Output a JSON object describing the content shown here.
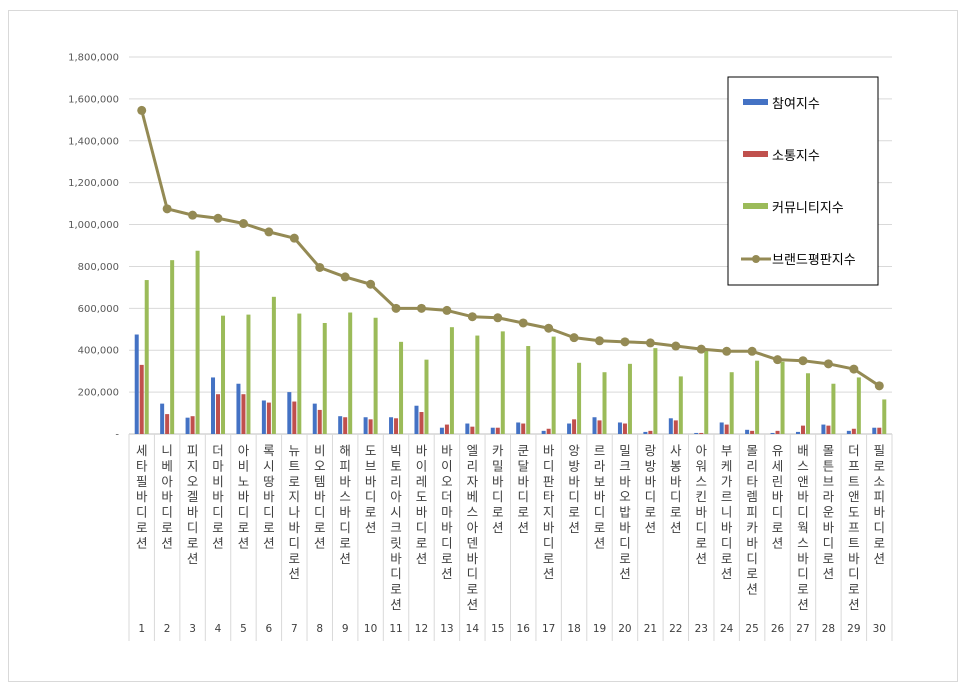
{
  "chart_data": {
    "type": "bar",
    "categories": [
      "세타필 바디로션",
      "니베아 바디로션",
      "피지오겔 바디로션",
      "더마비 바디로션",
      "아비노 바디로션",
      "록시땅 바디로션",
      "뉴트로지나 바디로션",
      "비오템 바디로션",
      "해피바스 바디로션",
      "도브 바디로션",
      "빅토리아시크릿 바디로션",
      "바이레도 바디로션",
      "바이오더마 바디로션",
      "엘리자베스아덴 바디로션",
      "카밀 바디로션",
      "쿤달 바디로션",
      "바디판타지 바디로션",
      "앙방 바디로션",
      "르라보 바디로션",
      "밀크바오밥 바디로션",
      "랑방 바디로션",
      "사봉 바디로션",
      "아워스킨 바디로션",
      "부케가르니 바디로션",
      "몰리타렘피카 바디로션",
      "유세린 바디로션",
      "배스앤바디웍스 바디로션",
      "몰튼브라운 바디로션",
      "더프트앤도프트 바디로션",
      "필로소피 바디로션"
    ],
    "category_labels": [
      [
        "세",
        "타",
        "필",
        "바",
        "디",
        "로",
        "션"
      ],
      [
        "니",
        "베",
        "아",
        "바",
        "디",
        "로",
        "션"
      ],
      [
        "피",
        "지",
        "오",
        "겔",
        "바",
        "디",
        "로",
        "션"
      ],
      [
        "더",
        "마",
        "비",
        "바",
        "디",
        "로",
        "션"
      ],
      [
        "아",
        "비",
        "노",
        "바",
        "디",
        "로",
        "션"
      ],
      [
        "록",
        "시",
        "땅",
        "바",
        "디",
        "로",
        "션"
      ],
      [
        "뉴",
        "트",
        "로",
        "지",
        "나",
        "바",
        "디",
        "로",
        "션"
      ],
      [
        "비",
        "오",
        "템",
        "바",
        "디",
        "로",
        "션"
      ],
      [
        "해",
        "피",
        "바",
        "스",
        "바",
        "디",
        "로",
        "션"
      ],
      [
        "도",
        "브",
        "바",
        "디",
        "로",
        "션"
      ],
      [
        "빅",
        "토",
        "리",
        "아",
        "시",
        "크",
        "릿",
        "바",
        "디",
        "로",
        "션"
      ],
      [
        "바",
        "이",
        "레",
        "도",
        "바",
        "디",
        "로",
        "션"
      ],
      [
        "바",
        "이",
        "오",
        "더",
        "마",
        "바",
        "디",
        "로",
        "션"
      ],
      [
        "엘",
        "리",
        "자",
        "베",
        "스",
        "아",
        "덴",
        "바",
        "디",
        "로",
        "션"
      ],
      [
        "카",
        "밀",
        "바",
        "디",
        "로",
        "션"
      ],
      [
        "쿤",
        "달",
        "바",
        "디",
        "로",
        "션"
      ],
      [
        "바",
        "디",
        "판",
        "타",
        "지",
        "바",
        "디",
        "로",
        "션"
      ],
      [
        "앙",
        "방",
        "바",
        "디",
        "로",
        "션"
      ],
      [
        "르",
        "라",
        "보",
        "바",
        "디",
        "로",
        "션"
      ],
      [
        "밀",
        "크",
        "바",
        "오",
        "밥",
        "바",
        "디",
        "로",
        "션"
      ],
      [
        "랑",
        "방",
        "바",
        "디",
        "로",
        "션"
      ],
      [
        "사",
        "봉",
        "바",
        "디",
        "로",
        "션"
      ],
      [
        "아",
        "워",
        "스",
        "킨",
        "바",
        "디",
        "로",
        "션"
      ],
      [
        "부",
        "케",
        "가",
        "르",
        "니",
        "바",
        "디",
        "로",
        "션"
      ],
      [
        "몰",
        "리",
        "타",
        "렘",
        "피",
        "카",
        "바",
        "디",
        "로",
        "션"
      ],
      [
        "유",
        "세",
        "린",
        "바",
        "디",
        "로",
        "션"
      ],
      [
        "배",
        "스",
        "앤",
        "바",
        "디",
        "웍",
        "스",
        "바",
        "디",
        "로",
        "션"
      ],
      [
        "몰",
        "튼",
        "브",
        "라",
        "운",
        "바",
        "디",
        "로",
        "션"
      ],
      [
        "더",
        "프",
        "트",
        "앤",
        "도",
        "프",
        "트",
        "바",
        "디",
        "로",
        "션"
      ],
      [
        "필",
        "로",
        "소",
        "피",
        "바",
        "디",
        "로",
        "션"
      ]
    ],
    "ranks": [
      "1",
      "2",
      "3",
      "4",
      "5",
      "6",
      "7",
      "8",
      "9",
      "10",
      "11",
      "12",
      "13",
      "14",
      "15",
      "16",
      "17",
      "18",
      "19",
      "20",
      "21",
      "22",
      "23",
      "24",
      "25",
      "26",
      "27",
      "28",
      "29",
      "30"
    ],
    "series": [
      {
        "name": "참여지수",
        "type": "bar",
        "color": "#4472c4",
        "values": [
          475000,
          145000,
          78000,
          270000,
          240000,
          160000,
          200000,
          145000,
          85000,
          80000,
          80000,
          135000,
          30000,
          50000,
          30000,
          55000,
          15000,
          50000,
          80000,
          55000,
          10000,
          75000,
          5000,
          55000,
          20000,
          5000,
          10000,
          45000,
          15000,
          30000
        ]
      },
      {
        "name": "소통지수",
        "type": "bar",
        "color": "#c0504d",
        "values": [
          330000,
          95000,
          85000,
          190000,
          190000,
          150000,
          155000,
          115000,
          80000,
          70000,
          75000,
          105000,
          45000,
          35000,
          30000,
          50000,
          25000,
          70000,
          65000,
          50000,
          15000,
          65000,
          5000,
          45000,
          15000,
          15000,
          40000,
          40000,
          25000,
          30000
        ]
      },
      {
        "name": "커뮤니티지수",
        "type": "bar",
        "color": "#9bbb59",
        "values": [
          735000,
          830000,
          875000,
          565000,
          570000,
          655000,
          575000,
          530000,
          580000,
          555000,
          440000,
          355000,
          510000,
          470000,
          490000,
          420000,
          465000,
          340000,
          295000,
          335000,
          410000,
          275000,
          400000,
          295000,
          350000,
          345000,
          290000,
          240000,
          270000,
          165000
        ]
      },
      {
        "name": "브랜드평판지수",
        "type": "line",
        "color": "#948a54",
        "values": [
          1545000,
          1075000,
          1045000,
          1030000,
          1005000,
          965000,
          935000,
          795000,
          750000,
          715000,
          600000,
          600000,
          590000,
          560000,
          555000,
          530000,
          505000,
          460000,
          445000,
          440000,
          435000,
          420000,
          405000,
          395000,
          395000,
          355000,
          350000,
          335000,
          310000,
          230000
        ]
      }
    ],
    "ylim": [
      0,
      1800000
    ],
    "yticks": [
      0,
      200000,
      400000,
      600000,
      800000,
      1000000,
      1200000,
      1400000,
      1600000,
      1800000
    ],
    "ytick_labels": [
      "-",
      "200,000",
      "400,000",
      "600,000",
      "800,000",
      "1,000,000",
      "1,200,000",
      "1,400,000",
      "1,600,000",
      "1,800,000"
    ],
    "grid": true,
    "legend_position": "top-right",
    "xlabel": "",
    "ylabel": "",
    "title": ""
  }
}
